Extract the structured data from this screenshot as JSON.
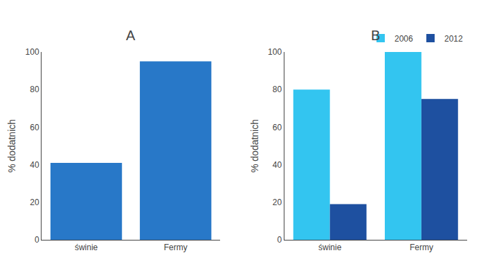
{
  "chart_data": [
    {
      "type": "bar",
      "title": "A",
      "categories": [
        "świnie",
        "Fermy"
      ],
      "values": [
        41,
        95
      ],
      "color": "#2878C8",
      "ylabel": "% dodatnich",
      "ylim": [
        0,
        100
      ],
      "yticks": [
        0,
        20,
        40,
        60,
        80,
        100
      ],
      "grid": false
    },
    {
      "type": "bar",
      "title": "B",
      "categories": [
        "świnie",
        "Fermy"
      ],
      "series": [
        {
          "name": "2006",
          "color": "#33C5F0",
          "values": [
            80,
            100
          ]
        },
        {
          "name": "2012",
          "color": "#1E50A0",
          "values": [
            19,
            75
          ]
        }
      ],
      "ylabel": "% dodatnich",
      "ylim": [
        0,
        100
      ],
      "yticks": [
        0,
        20,
        40,
        60,
        80,
        100
      ],
      "grid": false,
      "legend": "upper right"
    }
  ]
}
